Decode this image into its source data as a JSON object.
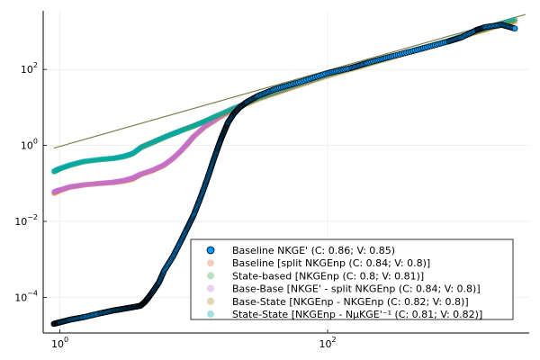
{
  "chart_data": {
    "type": "scatter",
    "title": "",
    "xlabel": "",
    "ylabel": "",
    "x_scale": "log10",
    "y_scale": "log10",
    "xlim": [
      0.75,
      3200
    ],
    "ylim": [
      1.15e-05,
      3500
    ],
    "x_ticks": [
      {
        "mantissa": "10",
        "exp": "0",
        "value": 1
      },
      {
        "mantissa": "10",
        "exp": "2",
        "value": 100
      }
    ],
    "y_ticks": [
      {
        "mantissa": "10",
        "exp": "−4",
        "value": 0.0001
      },
      {
        "mantissa": "10",
        "exp": "−2",
        "value": 0.01
      },
      {
        "mantissa": "10",
        "exp": "0",
        "value": 1
      },
      {
        "mantissa": "10",
        "exp": "2",
        "value": 100
      }
    ],
    "grid": true,
    "legend_position": "bottom-right",
    "reference_line": {
      "x": [
        0.9,
        3000
      ],
      "y": [
        0.85,
        2800
      ],
      "color": "#7f7f4f"
    },
    "series": [
      {
        "name": "Baseline NKGE' (C: 0.86; V: 0.85)",
        "color": "#009af9",
        "alpha": 1.0,
        "edge": true,
        "points": [
          [
            0.9,
            2e-05
          ],
          [
            1.0,
            2.2e-05
          ],
          [
            1.2,
            2.6e-05
          ],
          [
            1.5,
            3e-05
          ],
          [
            2,
            3.8e-05
          ],
          [
            2.5,
            4.5e-05
          ],
          [
            3,
            5e-05
          ],
          [
            3.5,
            5.5e-05
          ],
          [
            4.0,
            6e-05
          ],
          [
            4.3,
            7.5e-05
          ],
          [
            4.6,
            0.0001
          ],
          [
            5,
            0.00015
          ],
          [
            5.5,
            0.00025
          ],
          [
            6,
            0.0005
          ],
          [
            7,
            0.0012
          ],
          [
            8,
            0.003
          ],
          [
            9,
            0.007
          ],
          [
            10,
            0.015
          ],
          [
            11,
            0.035
          ],
          [
            12,
            0.08
          ],
          [
            13,
            0.18
          ],
          [
            14,
            0.4
          ],
          [
            15,
            0.8
          ],
          [
            16,
            1.5
          ],
          [
            17,
            2.5
          ],
          [
            18,
            4
          ],
          [
            20,
            7
          ],
          [
            22,
            10
          ],
          [
            25,
            14
          ],
          [
            30,
            20
          ],
          [
            40,
            30
          ],
          [
            60,
            45
          ],
          [
            100,
            80
          ],
          [
            150,
            110
          ],
          [
            200,
            150
          ],
          [
            300,
            220
          ],
          [
            500,
            350
          ],
          [
            800,
            550
          ],
          [
            1000,
            700
          ],
          [
            1300,
            1100
          ],
          [
            1500,
            1300
          ],
          [
            2000,
            1500
          ],
          [
            2500,
            1200
          ]
        ]
      },
      {
        "name": "Baseline [split NKGEnp (C: 0.84; V: 0.8)]",
        "color": "#e26f46",
        "alpha": 0.35,
        "edge": false,
        "points": [
          [
            0.9,
            0.055
          ],
          [
            1.0,
            0.065
          ],
          [
            1.2,
            0.08
          ],
          [
            1.5,
            0.09
          ],
          [
            2,
            0.1
          ],
          [
            2.5,
            0.105
          ],
          [
            3,
            0.115
          ],
          [
            3.5,
            0.13
          ],
          [
            4,
            0.17
          ],
          [
            5,
            0.22
          ],
          [
            6,
            0.3
          ],
          [
            7,
            0.45
          ],
          [
            8,
            0.7
          ],
          [
            9,
            1.1
          ],
          [
            10,
            1.7
          ],
          [
            12,
            3
          ],
          [
            15,
            5
          ],
          [
            20,
            9
          ],
          [
            30,
            17
          ],
          [
            50,
            30
          ],
          [
            100,
            70
          ],
          [
            200,
            140
          ],
          [
            400,
            280
          ],
          [
            800,
            550
          ],
          [
            1200,
            900
          ],
          [
            1600,
            1200
          ],
          [
            2500,
            1800
          ]
        ]
      },
      {
        "name": "State-based [NKGEnp (C: 0.8; V: 0.81)]",
        "color": "#3da44d",
        "alpha": 0.35,
        "edge": false,
        "points": [
          [
            0.9,
            0.2
          ],
          [
            1.0,
            0.24
          ],
          [
            1.2,
            0.3
          ],
          [
            1.5,
            0.37
          ],
          [
            2,
            0.42
          ],
          [
            2.5,
            0.45
          ],
          [
            3,
            0.5
          ],
          [
            3.5,
            0.6
          ],
          [
            4,
            0.85
          ],
          [
            5,
            1.2
          ],
          [
            6,
            1.6
          ],
          [
            7,
            2
          ],
          [
            8,
            2.4
          ],
          [
            10,
            3.2
          ],
          [
            12,
            4.2
          ],
          [
            15,
            6
          ],
          [
            20,
            9.5
          ],
          [
            30,
            17
          ],
          [
            50,
            32
          ],
          [
            100,
            70
          ],
          [
            200,
            140
          ],
          [
            400,
            290
          ],
          [
            800,
            570
          ],
          [
            1200,
            950
          ],
          [
            1600,
            1250
          ],
          [
            2500,
            2000
          ]
        ]
      },
      {
        "name": "Base-Base [NKGE' - split NKGEnp (C: 0.84; V: 0.8)]",
        "color": "#c271d2",
        "alpha": 0.35,
        "edge": false,
        "points": [
          [
            0.9,
            0.06
          ],
          [
            1.0,
            0.068
          ],
          [
            1.2,
            0.082
          ],
          [
            1.5,
            0.092
          ],
          [
            2,
            0.1
          ],
          [
            2.5,
            0.108
          ],
          [
            3,
            0.12
          ],
          [
            3.5,
            0.14
          ],
          [
            4,
            0.175
          ],
          [
            5,
            0.23
          ],
          [
            6,
            0.31
          ],
          [
            7,
            0.46
          ],
          [
            8,
            0.72
          ],
          [
            9,
            1.15
          ],
          [
            10,
            1.75
          ],
          [
            12,
            3.1
          ],
          [
            15,
            5.2
          ],
          [
            20,
            9.2
          ],
          [
            30,
            17.5
          ],
          [
            50,
            31
          ],
          [
            100,
            71
          ],
          [
            200,
            142
          ],
          [
            400,
            285
          ],
          [
            800,
            560
          ],
          [
            1200,
            920
          ],
          [
            1600,
            1220
          ]
        ]
      },
      {
        "name": "Base-State [NKGEnp - NKGEnp (C: 0.82; V: 0.8)]",
        "color": "#ac8d18",
        "alpha": 0.35,
        "edge": false,
        "points": [
          [
            4,
            0.9
          ],
          [
            5,
            1.25
          ],
          [
            6,
            1.65
          ],
          [
            8,
            2.5
          ],
          [
            10,
            3.3
          ],
          [
            12,
            4.3
          ],
          [
            15,
            6
          ],
          [
            20,
            9
          ],
          [
            30,
            16
          ],
          [
            50,
            30
          ],
          [
            100,
            66
          ],
          [
            200,
            132
          ],
          [
            400,
            270
          ],
          [
            800,
            540
          ],
          [
            1200,
            880
          ],
          [
            1600,
            1180
          ],
          [
            2500,
            1900
          ]
        ]
      },
      {
        "name": "State-State [NKGEnp - NμKGE'⁻¹ (C: 0.81; V: 0.82)]",
        "color": "#00a9ad",
        "alpha": 0.35,
        "edge": false,
        "points": [
          [
            0.9,
            0.21
          ],
          [
            1.0,
            0.25
          ],
          [
            1.2,
            0.31
          ],
          [
            1.5,
            0.38
          ],
          [
            2,
            0.43
          ],
          [
            2.5,
            0.46
          ],
          [
            3,
            0.52
          ],
          [
            3.5,
            0.62
          ],
          [
            4,
            0.88
          ],
          [
            5,
            1.25
          ],
          [
            6,
            1.65
          ],
          [
            7,
            2.05
          ],
          [
            8,
            2.45
          ],
          [
            10,
            3.3
          ],
          [
            12,
            4.3
          ],
          [
            15,
            6.2
          ],
          [
            20,
            9.7
          ],
          [
            30,
            17.5
          ],
          [
            50,
            33
          ],
          [
            100,
            72
          ],
          [
            200,
            145
          ],
          [
            400,
            295
          ],
          [
            800,
            580
          ],
          [
            1200,
            960
          ],
          [
            1600,
            1270
          ],
          [
            2500,
            2100
          ]
        ]
      }
    ]
  }
}
